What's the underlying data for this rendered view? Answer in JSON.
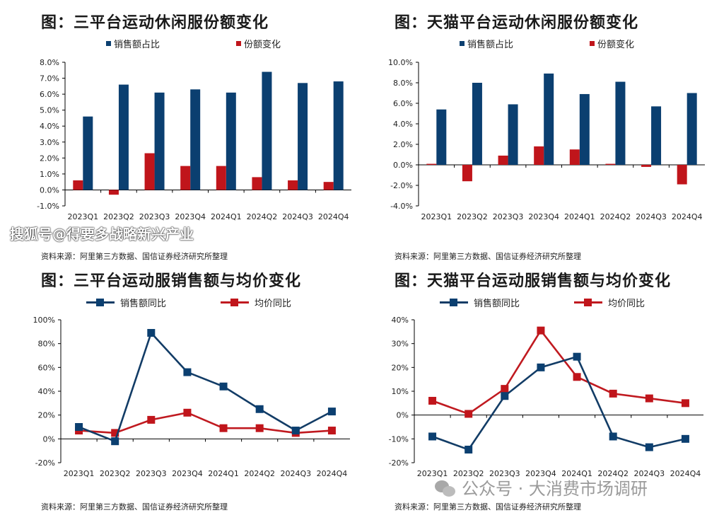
{
  "watermark_top": "搜狐号@得要多战略新兴产业",
  "watermark_bottom": "公众号 · 大消费市场调研",
  "colors": {
    "blue": "#0b3f70",
    "red": "#c0151b",
    "line_blue": "#123c66",
    "line_red": "#c01a20"
  },
  "chart_data": [
    {
      "type": "bar",
      "title": "图：三平台运动休闲服份额变化",
      "categories": [
        "2023Q1",
        "2023Q2",
        "2023Q3",
        "2023Q4",
        "2024Q1",
        "2024Q2",
        "2024Q3",
        "2024Q4"
      ],
      "series": [
        {
          "name": "销售额占比",
          "values": [
            4.6,
            6.6,
            6.1,
            6.3,
            6.1,
            7.4,
            6.7,
            6.8
          ]
        },
        {
          "name": "份额变化",
          "values": [
            0.6,
            -0.3,
            2.3,
            1.5,
            1.5,
            0.8,
            0.6,
            0.5
          ]
        }
      ],
      "yticks": [
        "-1.0%",
        "0.0%",
        "1.0%",
        "2.0%",
        "3.0%",
        "4.0%",
        "5.0%",
        "6.0%",
        "7.0%",
        "8.0%"
      ],
      "ylim": [
        -1,
        8
      ],
      "unit": "%",
      "grid": false,
      "legend": "top",
      "source": "资料来源：阿里第三方数据、国信证券经济研究所整理"
    },
    {
      "type": "bar",
      "title": "图：天猫平台运动休闲服份额变化",
      "categories": [
        "2023Q1",
        "2023Q2",
        "2023Q3",
        "2023Q4",
        "2024Q1",
        "2024Q2",
        "2024Q3",
        "2024Q4"
      ],
      "series": [
        {
          "name": "销售额占比",
          "values": [
            5.4,
            8.0,
            5.9,
            8.9,
            6.9,
            8.1,
            5.7,
            7.0
          ]
        },
        {
          "name": "份额变化",
          "values": [
            0.1,
            -1.6,
            0.9,
            1.8,
            1.5,
            0.1,
            -0.2,
            -1.9
          ]
        }
      ],
      "yticks": [
        "-4.0%",
        "-2.0%",
        "0.0%",
        "2.0%",
        "4.0%",
        "6.0%",
        "8.0%",
        "10.0%"
      ],
      "ylim": [
        -4,
        10
      ],
      "unit": "%",
      "grid": false,
      "legend": "top",
      "source": "资料来源：阿里第三方数据、国信证券经济研究所整理"
    },
    {
      "type": "line",
      "title": "图：三平台运动服销售额与均价变化",
      "categories": [
        "2023Q1",
        "2023Q2",
        "2023Q3",
        "2023Q4",
        "2024Q1",
        "2024Q2",
        "2024Q3",
        "2024Q4"
      ],
      "series": [
        {
          "name": "销售额同比",
          "values": [
            10,
            -2,
            89,
            56,
            44,
            25,
            7,
            23
          ]
        },
        {
          "name": "均价同比",
          "values": [
            7,
            5,
            16,
            22,
            9,
            9,
            5,
            7
          ]
        }
      ],
      "yticks": [
        "-20%",
        "0%",
        "20%",
        "40%",
        "60%",
        "80%",
        "100%"
      ],
      "ylim": [
        -20,
        100
      ],
      "unit": "%",
      "grid": false,
      "legend": "top",
      "source": "资料来源：阿里第三方数据、国信证券经济研究所整理"
    },
    {
      "type": "line",
      "title": "图：天猫平台运动服销售额与均价变化",
      "categories": [
        "2023Q1",
        "2023Q2",
        "2023Q3",
        "2023Q4",
        "2024Q1",
        "2024Q2",
        "2024Q3",
        "2024Q4"
      ],
      "series": [
        {
          "name": "销售额同比",
          "values": [
            -9,
            -14.5,
            8,
            20,
            24.5,
            -9,
            -13.5,
            -10
          ]
        },
        {
          "name": "均价同比",
          "values": [
            6,
            0.5,
            11,
            35.5,
            16,
            9,
            7,
            5
          ]
        }
      ],
      "yticks": [
        "-20%",
        "-10%",
        "0%",
        "10%",
        "20%",
        "30%",
        "40%"
      ],
      "ylim": [
        -20,
        40
      ],
      "unit": "%",
      "grid": false,
      "legend": "top",
      "source": "资料来源：阿里第三方数据、国信证券经济研究所整理"
    }
  ]
}
